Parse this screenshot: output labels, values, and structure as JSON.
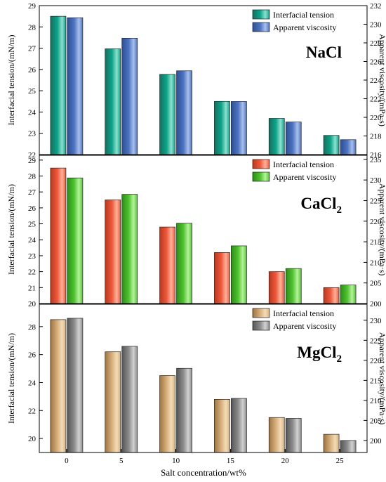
{
  "figure": {
    "xlabel": "Salt concentration/wt%",
    "left_axis_label": "Interfacial tension/(mN/m)",
    "right_axis_label": "Apparent viscosity/(mPa·s)"
  },
  "chart_data": [
    {
      "type": "bar",
      "title": "NaCl",
      "categories": [
        "0",
        "5",
        "10",
        "15",
        "20",
        "25"
      ],
      "ylabel": "Interfacial tension/(mN/m)",
      "y2label": "Apparent viscosity/(mPa·s)",
      "ylim": [
        22,
        29
      ],
      "y2lim": [
        216,
        232
      ],
      "yticks": [
        22,
        23,
        24,
        25,
        26,
        27,
        28,
        29
      ],
      "y2ticks": [
        216,
        218,
        220,
        222,
        224,
        226,
        228,
        230,
        232
      ],
      "series": [
        {
          "name": "Interfacial tension",
          "axis": "left",
          "values": [
            28.5,
            26.97,
            25.77,
            24.5,
            23.7,
            22.9
          ]
        },
        {
          "name": "Apparent viscosity",
          "axis": "right",
          "values": [
            230.7,
            228.5,
            225.0,
            221.7,
            219.5,
            217.6
          ]
        }
      ],
      "colors": {
        "left": [
          "#0aa58a",
          "#1f6b5e",
          "#8fe0cf"
        ],
        "right": [
          "#4c74c4",
          "#2f4f8f",
          "#a9c0ec"
        ]
      },
      "legend": "top-right",
      "grid": false
    },
    {
      "type": "bar",
      "title": "CaCl2",
      "categories": [
        "0",
        "5",
        "10",
        "15",
        "20",
        "25"
      ],
      "ylabel": "Interfacial tension/(mN/m)",
      "y2label": "Apparent viscosity/(mPa·s)",
      "ylim": [
        20,
        29.3
      ],
      "y2lim": [
        200,
        236
      ],
      "yticks": [
        20,
        21,
        22,
        23,
        24,
        25,
        26,
        27,
        28,
        29
      ],
      "y2ticks": [
        200,
        205,
        210,
        215,
        220,
        225,
        230,
        235
      ],
      "series": [
        {
          "name": "Interfacial tension",
          "axis": "left",
          "values": [
            28.5,
            26.5,
            24.8,
            23.2,
            22.0,
            21.0
          ]
        },
        {
          "name": "Apparent viscosity",
          "axis": "right",
          "values": [
            230.5,
            226.5,
            219.5,
            214.0,
            208.5,
            204.5
          ]
        }
      ],
      "colors": {
        "left": [
          "#f0583a",
          "#b43a22",
          "#ffb29b"
        ],
        "right": [
          "#4fc52f",
          "#2f8a1c",
          "#b7f39c"
        ]
      },
      "legend": "top-right",
      "grid": false
    },
    {
      "type": "bar",
      "title": "MgCl2",
      "categories": [
        "0",
        "5",
        "10",
        "15",
        "20",
        "25"
      ],
      "ylabel": "Interfacial tension/(mN/m)",
      "y2label": "Apparent viscosity/(mPa·s)",
      "ylim": [
        19,
        29.6
      ],
      "y2lim": [
        197,
        234
      ],
      "yticks": [
        20,
        22,
        24,
        26,
        28
      ],
      "y2ticks": [
        200,
        205,
        210,
        215,
        220,
        225,
        230
      ],
      "series": [
        {
          "name": "Interfacial tension",
          "axis": "left",
          "values": [
            28.5,
            26.2,
            24.5,
            22.8,
            21.5,
            20.3
          ]
        },
        {
          "name": "Apparent viscosity",
          "axis": "right",
          "values": [
            230.5,
            223.5,
            218.0,
            210.5,
            205.5,
            200.0
          ]
        }
      ],
      "colors": {
        "left": [
          "#d9b07c",
          "#9b7444",
          "#f3dcb8"
        ],
        "right": [
          "#8c8c8c",
          "#555555",
          "#d2d2d2"
        ]
      },
      "legend": "top-right",
      "grid": false
    }
  ]
}
